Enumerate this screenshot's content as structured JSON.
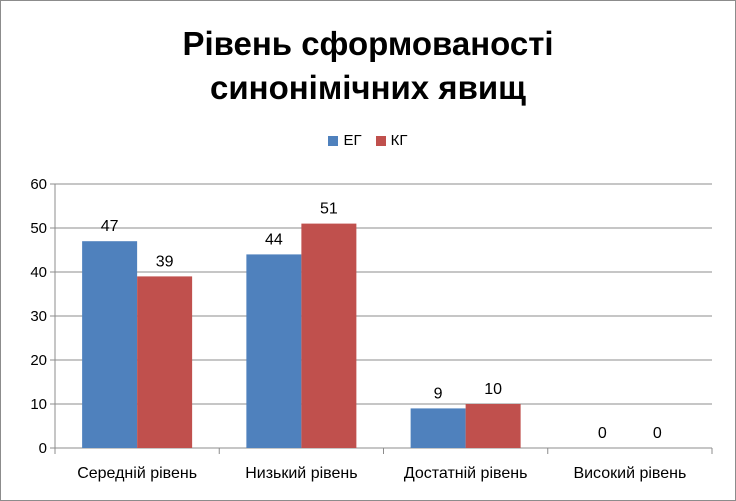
{
  "chart_data": {
    "type": "bar",
    "title_line1": "Рівень сформованості",
    "title_line2": "синонімічних явищ",
    "categories": [
      "Середній рівень",
      "Низький рівень",
      "Достатній рівень",
      "Високий рівень"
    ],
    "series": [
      {
        "name": "ЕГ",
        "color": "#4f81bd",
        "values": [
          47,
          44,
          9,
          0
        ]
      },
      {
        "name": "КГ",
        "color": "#c0504d",
        "values": [
          39,
          51,
          10,
          0
        ]
      }
    ],
    "yticks": [
      0,
      10,
      20,
      30,
      40,
      50,
      60
    ],
    "ylim": [
      0,
      60
    ],
    "grid": true,
    "legend_position": "top"
  }
}
